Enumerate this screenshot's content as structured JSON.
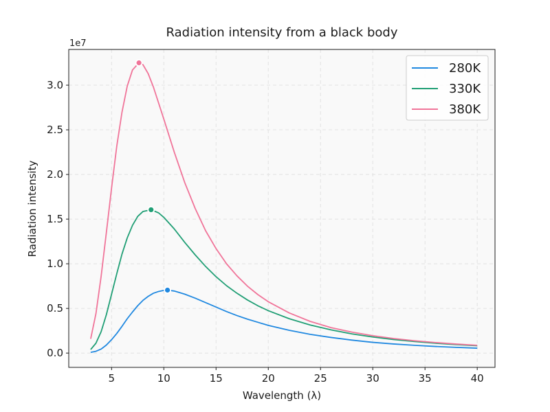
{
  "chart_data": {
    "type": "line",
    "title": "Radiation intensity from a black body",
    "xlabel": "Wavelength (λ)",
    "ylabel": "Radiation intensity",
    "y_offset_label": "1e7",
    "xlim": [
      0.9,
      41.7
    ],
    "ylim": [
      -1600000,
      34000000
    ],
    "x_ticks": [
      5,
      10,
      15,
      20,
      25,
      30,
      35,
      40
    ],
    "y_ticks": [
      0,
      5000000,
      10000000,
      15000000,
      20000000,
      25000000,
      30000000
    ],
    "y_tick_labels": [
      "0.0",
      "0.5",
      "1.0",
      "1.5",
      "2.0",
      "2.5",
      "3.0"
    ],
    "grid": true,
    "legend": "top-right",
    "series": [
      {
        "name": "280K",
        "color": "#1f88e0",
        "x": [
          3,
          3.5,
          4,
          4.5,
          5,
          5.5,
          6,
          6.5,
          7,
          7.5,
          8,
          8.5,
          9,
          9.5,
          10,
          10.35,
          11,
          12,
          13,
          14,
          15,
          16,
          17,
          18,
          19,
          20,
          22,
          24,
          26,
          28,
          30,
          32,
          34,
          36,
          38,
          40
        ],
        "y": [
          80000,
          200000,
          450000,
          900000,
          1500000,
          2200000,
          3000000,
          3850000,
          4600000,
          5300000,
          5900000,
          6350000,
          6700000,
          6900000,
          7020000,
          7050000,
          6950000,
          6600000,
          6150000,
          5650000,
          5150000,
          4650000,
          4200000,
          3800000,
          3450000,
          3100000,
          2550000,
          2100000,
          1750000,
          1450000,
          1200000,
          1020000,
          870000,
          740000,
          640000,
          550000
        ],
        "peak": {
          "x": 10.35,
          "y": 7050000
        }
      },
      {
        "name": "330K",
        "color": "#1f9e74",
        "x": [
          3,
          3.5,
          4,
          4.5,
          5,
          5.5,
          6,
          6.5,
          7,
          7.5,
          8,
          8.78,
          9.5,
          10,
          11,
          12,
          13,
          14,
          15,
          16,
          17,
          18,
          19,
          20,
          22,
          24,
          26,
          28,
          30,
          32,
          34,
          36,
          38,
          40
        ],
        "y": [
          400000,
          1100000,
          2400000,
          4300000,
          6600000,
          8900000,
          11100000,
          12900000,
          14300000,
          15300000,
          15850000,
          16050000,
          15700000,
          15200000,
          13900000,
          12400000,
          11000000,
          9700000,
          8550000,
          7550000,
          6700000,
          5950000,
          5300000,
          4750000,
          3850000,
          3150000,
          2600000,
          2150000,
          1800000,
          1520000,
          1290000,
          1100000,
          950000,
          820000
        ],
        "peak": {
          "x": 8.78,
          "y": 16050000
        }
      },
      {
        "name": "380K",
        "color": "#f07499",
        "x": [
          3,
          3.5,
          4,
          4.5,
          5,
          5.5,
          6,
          6.5,
          7,
          7.62,
          8,
          8.5,
          9,
          9.5,
          10,
          11,
          12,
          13,
          14,
          15,
          16,
          17,
          18,
          19,
          20,
          22,
          24,
          26,
          28,
          30,
          32,
          34,
          36,
          38,
          40
        ],
        "y": [
          1600000,
          4400000,
          8600000,
          13500000,
          18500000,
          23200000,
          27000000,
          29900000,
          31700000,
          32500000,
          32300000,
          31300000,
          29800000,
          28000000,
          26200000,
          22500000,
          19100000,
          16200000,
          13700000,
          11700000,
          10000000,
          8650000,
          7500000,
          6550000,
          5750000,
          4500000,
          3550000,
          2850000,
          2350000,
          1950000,
          1630000,
          1380000,
          1180000,
          1010000,
          870000
        ],
        "peak": {
          "x": 7.62,
          "y": 32500000
        }
      }
    ]
  }
}
